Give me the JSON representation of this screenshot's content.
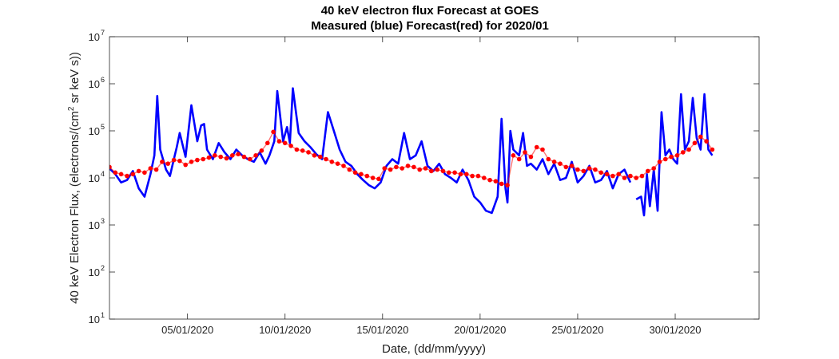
{
  "chart_data": {
    "type": "line",
    "title": "40 keV electron flux Forecast at GOES",
    "subtitle": "Measured (blue) Forecast(red) for 2020/01",
    "xlabel": "Date, (dd/mm/yyyy)",
    "ylabel_prefix": "40 keV Electron Flux, (electrons/(cm",
    "ylabel_sup": "2",
    "ylabel_suffix": " sr keV s))",
    "x_tick_labels": [
      "05/01/2020",
      "10/01/2020",
      "15/01/2020",
      "20/01/2020",
      "25/01/2020",
      "30/01/2020"
    ],
    "x_tick_days": [
      5,
      10,
      15,
      20,
      25,
      30
    ],
    "xlim_days": [
      1,
      34.3
    ],
    "y_scale": "log",
    "ylim": [
      10,
      10000000
    ],
    "y_tick_base": "10",
    "y_tick_exponents": [
      "1",
      "2",
      "3",
      "4",
      "5",
      "6",
      "7"
    ],
    "grid": false,
    "series": [
      {
        "color": "#0000ff",
        "style": "line",
        "x_day": [
          1.0,
          1.3,
          1.6,
          1.9,
          2.2,
          2.5,
          2.8,
          3.1,
          3.3,
          3.45,
          3.6,
          3.9,
          4.1,
          4.3,
          4.45,
          4.6,
          4.9,
          5.2,
          5.5,
          5.7,
          5.85,
          6.0,
          6.3,
          6.6,
          6.9,
          7.2,
          7.5,
          7.8,
          8.1,
          8.4,
          8.7,
          9.0,
          9.2,
          9.45,
          9.6,
          9.9,
          10.1,
          10.25,
          10.4,
          10.7,
          11.0,
          11.3,
          11.6,
          11.9,
          12.2,
          12.5,
          12.8,
          13.1,
          13.4,
          13.7,
          14.0,
          14.3,
          14.6,
          14.9,
          15.2,
          15.5,
          15.8,
          16.1,
          16.4,
          16.7,
          17.0,
          17.3,
          17.6,
          17.9,
          18.2,
          18.5,
          18.8,
          19.1,
          19.4,
          19.7,
          20.0,
          20.3,
          20.6,
          20.9,
          21.1,
          21.3,
          21.4,
          21.55,
          21.7,
          22.0,
          22.2,
          22.4,
          22.6,
          22.9,
          23.2,
          23.5,
          23.8,
          24.1,
          24.4,
          24.7,
          25.0,
          25.3,
          25.6,
          25.9,
          26.2,
          26.5,
          26.8,
          27.1,
          27.4,
          27.7
        ],
        "values": [
          16000,
          12000,
          8000,
          9000,
          14000,
          6000,
          4000,
          12000,
          30000,
          550000,
          40000,
          15000,
          11000,
          25000,
          45000,
          90000,
          28000,
          350000,
          60000,
          130000,
          140000,
          40000,
          25000,
          55000,
          35000,
          25000,
          40000,
          30000,
          25000,
          22000,
          35000,
          20000,
          30000,
          60000,
          700000,
          60000,
          120000,
          55000,
          800000,
          90000,
          60000,
          45000,
          32000,
          25000,
          250000,
          100000,
          40000,
          22000,
          18000,
          12000,
          9000,
          7000,
          6000,
          8000,
          18000,
          25000,
          20000,
          90000,
          25000,
          30000,
          60000,
          18000,
          14000,
          20000,
          12000,
          10000,
          8000,
          15000,
          9000,
          4000,
          3000,
          2000,
          1800,
          4000,
          180000,
          6000,
          3000,
          100000,
          40000,
          30000,
          90000,
          18000,
          20000,
          15000,
          25000,
          12000,
          20000,
          9000,
          10000,
          22000,
          8000,
          11000,
          18000,
          8000,
          9000,
          14000,
          6000,
          12000,
          15000,
          8000
        ]
      },
      {
        "color": "#0000ff",
        "style": "line",
        "x_day": [
          28.0,
          28.25,
          28.4,
          28.55,
          28.7,
          28.9,
          29.1,
          29.3,
          29.5,
          29.7,
          29.9,
          30.1,
          30.3,
          30.5,
          30.7,
          30.9,
          31.1,
          31.3,
          31.5,
          31.7,
          31.9
        ],
        "values": [
          3500,
          4000,
          1600,
          12000,
          2500,
          15000,
          2000,
          250000,
          30000,
          40000,
          25000,
          20000,
          600000,
          40000,
          60000,
          500000,
          70000,
          40000,
          600000,
          40000,
          30000
        ]
      },
      {
        "color": "#ff0000",
        "style": "markers",
        "x_day": [
          1.0,
          1.3,
          1.6,
          1.9,
          2.2,
          2.5,
          2.8,
          3.1,
          3.4,
          3.7,
          4.0,
          4.3,
          4.6,
          4.9,
          5.2,
          5.5,
          5.8,
          6.1,
          6.4,
          6.7,
          7.0,
          7.3,
          7.6,
          7.9,
          8.2,
          8.5,
          8.8,
          9.1,
          9.4,
          9.7,
          10.0,
          10.3,
          10.6,
          10.9,
          11.2,
          11.5,
          11.8,
          12.1,
          12.4,
          12.7,
          13.0,
          13.3,
          13.6,
          13.9,
          14.2,
          14.5,
          14.8,
          15.1,
          15.4,
          15.7,
          16.0,
          16.3,
          16.6,
          16.9,
          17.2,
          17.5,
          17.8,
          18.1,
          18.4,
          18.7,
          19.0,
          19.3,
          19.6,
          19.9,
          20.2,
          20.5,
          20.8,
          21.1,
          21.4,
          21.7,
          22.0,
          22.3,
          22.6,
          22.9,
          23.2,
          23.5,
          23.8,
          24.1,
          24.4,
          24.7,
          25.0,
          25.3,
          25.6,
          25.9,
          26.2,
          26.5,
          26.8,
          27.1,
          27.4,
          27.7,
          28.0,
          28.3,
          28.6,
          28.9,
          29.2,
          29.5,
          29.8,
          30.1,
          30.4,
          30.7,
          31.0,
          31.3,
          31.6,
          31.9
        ],
        "values": [
          17000,
          13000,
          12000,
          11000,
          12000,
          14000,
          13000,
          16000,
          15000,
          22000,
          20000,
          24000,
          23000,
          19000,
          22000,
          24000,
          25000,
          27000,
          30000,
          28000,
          26000,
          30000,
          32000,
          28000,
          25000,
          30000,
          38000,
          55000,
          95000,
          60000,
          55000,
          48000,
          40000,
          38000,
          35000,
          30000,
          28000,
          25000,
          22000,
          20000,
          18000,
          15000,
          13000,
          12000,
          11000,
          10000,
          9500,
          16000,
          15000,
          17000,
          16000,
          18000,
          17000,
          15000,
          16000,
          14000,
          15000,
          14000,
          13000,
          13000,
          12000,
          12000,
          11000,
          11000,
          10000,
          9000,
          8500,
          7500,
          7000,
          30000,
          25000,
          35000,
          28000,
          45000,
          40000,
          25000,
          22000,
          20000,
          17000,
          18000,
          15000,
          14000,
          16000,
          15000,
          13000,
          12000,
          11000,
          12000,
          10000,
          11000,
          10000,
          11000,
          14000,
          16000,
          22000,
          25000,
          28000,
          30000,
          35000,
          40000,
          55000,
          75000,
          60000,
          40000
        ]
      }
    ]
  }
}
